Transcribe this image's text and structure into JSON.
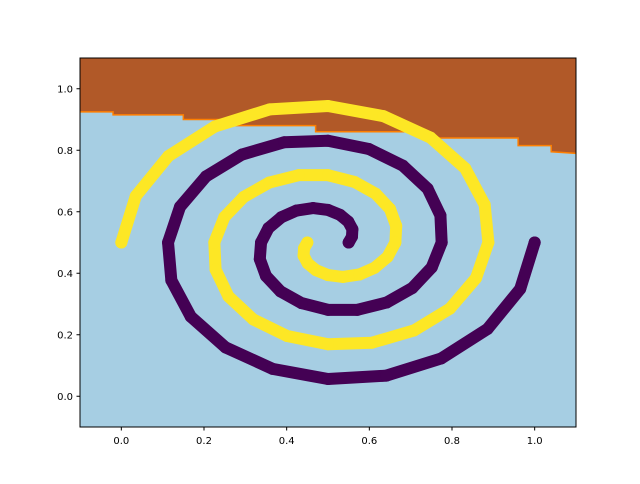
{
  "chart_data": {
    "type": "scatter",
    "xlim": [
      -0.1,
      1.1
    ],
    "ylim": [
      -0.1,
      1.1
    ],
    "xticks": [
      {
        "value": 0,
        "label": "0.0"
      },
      {
        "value": 0.2,
        "label": "0.2"
      },
      {
        "value": 0.4,
        "label": "0.4"
      },
      {
        "value": 0.6,
        "label": "0.6"
      },
      {
        "value": 0.8,
        "label": "0.8"
      },
      {
        "value": 1,
        "label": "1.0"
      }
    ],
    "yticks": [
      {
        "value": 0,
        "label": "0.0"
      },
      {
        "value": 0.2,
        "label": "0.2"
      },
      {
        "value": 0.4,
        "label": "0.4"
      },
      {
        "value": 0.6,
        "label": "0.6"
      },
      {
        "value": 0.8,
        "label": "0.8"
      },
      {
        "value": 1,
        "label": "1.0"
      }
    ],
    "decision_boundary": {
      "x": [
        -0.1,
        -0.02,
        -0.02,
        0.15,
        0.15,
        0.27,
        0.27,
        0.47,
        0.47,
        0.74,
        0.74,
        0.96,
        0.96,
        1.04,
        1.04,
        1.1
      ],
      "y": [
        0.925,
        0.925,
        0.915,
        0.915,
        0.9,
        0.9,
        0.88,
        0.88,
        0.86,
        0.86,
        0.84,
        0.84,
        0.815,
        0.815,
        0.795,
        0.79
      ],
      "below_color": "#a6cee3",
      "above_color": "#b15928",
      "edge_color": "#ff7f00"
    },
    "series": [
      {
        "color": "#440154",
        "x": [
          0.55,
          0.558,
          0.559,
          0.549,
          0.529,
          0.5,
          0.464,
          0.424,
          0.387,
          0.356,
          0.338,
          0.335,
          0.35,
          0.385,
          0.436,
          0.5,
          0.571,
          0.642,
          0.704,
          0.751,
          0.775,
          0.772,
          0.741,
          0.681,
          0.599,
          0.5,
          0.394,
          0.292,
          0.205,
          0.142,
          0.113,
          0.121,
          0.168,
          0.252,
          0.366,
          0.5,
          0.641,
          0.774,
          0.886,
          0.965,
          1.0
        ],
        "values": [
          0.5,
          0.519,
          0.543,
          0.568,
          0.59,
          0.606,
          0.612,
          0.604,
          0.582,
          0.547,
          0.5,
          0.446,
          0.391,
          0.341,
          0.303,
          0.281,
          0.281,
          0.305,
          0.352,
          0.419,
          0.5,
          0.588,
          0.675,
          0.75,
          0.804,
          0.831,
          0.826,
          0.786,
          0.715,
          0.616,
          0.5,
          0.377,
          0.259,
          0.159,
          0.089,
          0.056,
          0.067,
          0.123,
          0.219,
          0.349,
          0.5
        ]
      },
      {
        "color": "#fde725",
        "x": [
          0.45,
          0.442,
          0.441,
          0.451,
          0.471,
          0.5,
          0.536,
          0.576,
          0.613,
          0.644,
          0.663,
          0.665,
          0.65,
          0.615,
          0.564,
          0.5,
          0.429,
          0.358,
          0.296,
          0.249,
          0.225,
          0.228,
          0.259,
          0.319,
          0.401,
          0.5,
          0.606,
          0.708,
          0.795,
          0.858,
          0.888,
          0.879,
          0.832,
          0.748,
          0.634,
          0.5,
          0.359,
          0.226,
          0.114,
          0.035,
          0.0
        ],
        "values": [
          0.5,
          0.481,
          0.457,
          0.432,
          0.41,
          0.394,
          0.388,
          0.396,
          0.418,
          0.453,
          0.5,
          0.554,
          0.609,
          0.659,
          0.697,
          0.719,
          0.719,
          0.695,
          0.648,
          0.582,
          0.5,
          0.412,
          0.325,
          0.25,
          0.196,
          0.169,
          0.174,
          0.214,
          0.285,
          0.384,
          0.5,
          0.623,
          0.741,
          0.841,
          0.911,
          0.944,
          0.933,
          0.877,
          0.781,
          0.651,
          0.5
        ]
      }
    ]
  }
}
